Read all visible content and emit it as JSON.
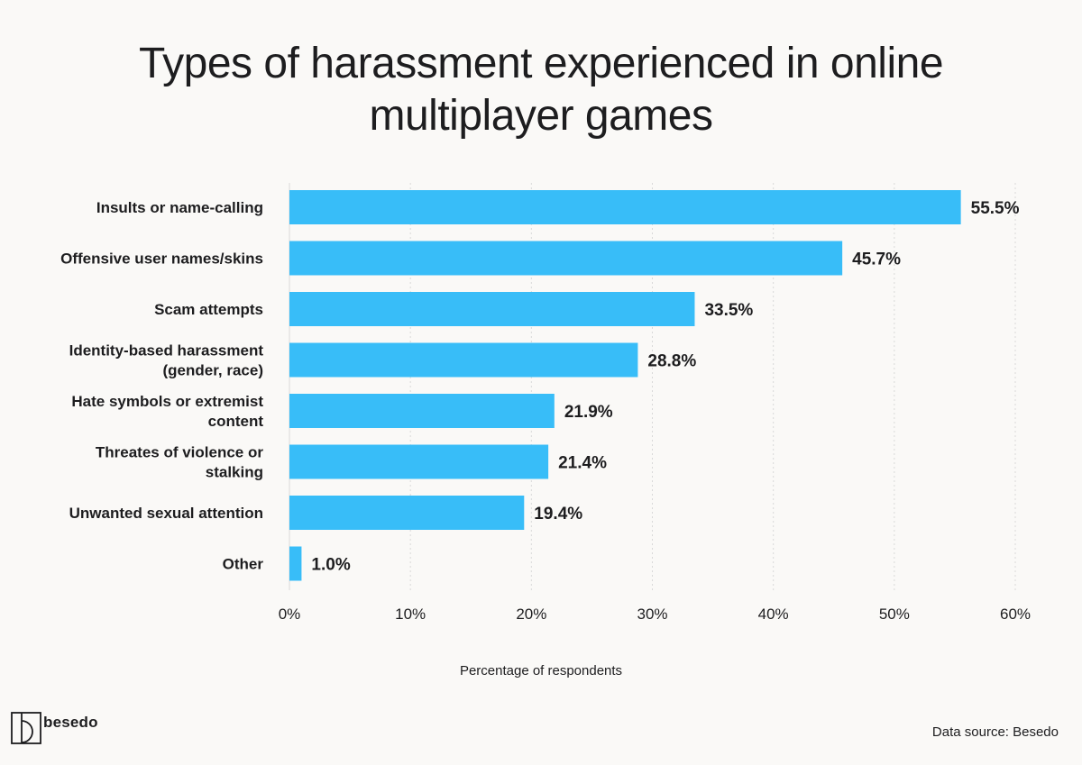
{
  "branding": {
    "logo_text": "besedo",
    "logo_icon": "besedo-logo-icon"
  },
  "source_note": "Data source: Besedo",
  "colors": {
    "bar": "#38bdf8",
    "background": "#faf9f7",
    "grid": "#d9d9d9",
    "text": "#1d1d1f"
  },
  "chart_data": {
    "type": "bar",
    "orientation": "horizontal",
    "title_lines": [
      "Types of harassment experienced in online",
      "multiplayer games"
    ],
    "categories": [
      [
        "Insults or name-calling"
      ],
      [
        "Offensive user names/skins"
      ],
      [
        "Scam attempts"
      ],
      [
        "Identity-based harassment",
        "(gender, race)"
      ],
      [
        "Hate symbols or extremist",
        "content"
      ],
      [
        "Threates of violence or",
        "stalking"
      ],
      [
        "Unwanted sexual attention"
      ],
      [
        "Other"
      ]
    ],
    "values": [
      55.5,
      45.7,
      33.5,
      28.8,
      21.9,
      21.4,
      19.4,
      1.0
    ],
    "value_labels": [
      "55.5%",
      "45.7%",
      "33.5%",
      "28.8%",
      "21.9%",
      "21.4%",
      "19.4%",
      "1.0%"
    ],
    "xlim": [
      0,
      60
    ],
    "xticks": [
      0,
      10,
      20,
      30,
      40,
      50,
      60
    ],
    "xtick_labels": [
      "0%",
      "10%",
      "20%",
      "30%",
      "40%",
      "50%",
      "60%"
    ],
    "xlabel": "Percentage of respondents",
    "grid": "vertical dotted",
    "legend": "none"
  }
}
